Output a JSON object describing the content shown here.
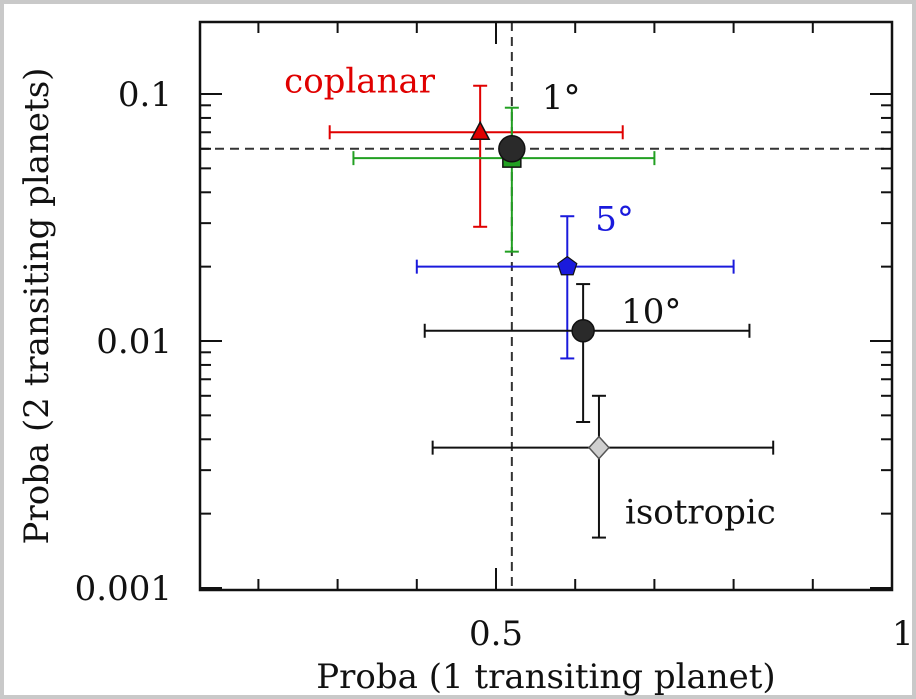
{
  "chart_data": {
    "type": "scatter",
    "xlabel": "Proba (1 transiting planet)",
    "ylabel": "Proba (2 transiting planets)",
    "x_scale": "linear",
    "y_scale": "log",
    "xlim": [
      0.0,
      1.0
    ],
    "ylim": [
      0.001,
      0.2
    ],
    "xticks": [
      0.5,
      1
    ],
    "xtick_labels": [
      "0.5",
      "1"
    ],
    "yticks": [
      0.001,
      0.01,
      0.1
    ],
    "ytick_labels": [
      "0.001",
      "0.01",
      "0.1"
    ],
    "reference_lines": {
      "x": 0.52,
      "y": 0.06,
      "style": "dashed"
    },
    "series": [
      {
        "name": "coplanar",
        "color": "#e00000",
        "marker": "triangle",
        "x": 0.48,
        "y": 0.07,
        "xerr": [
          0.29,
          0.66
        ],
        "yerr": [
          0.029,
          0.108
        ]
      },
      {
        "name": "",
        "color": "#22a022",
        "marker": "square",
        "x": 0.52,
        "y": 0.055,
        "xerr": [
          0.32,
          0.7
        ],
        "yerr": [
          0.023,
          0.088
        ]
      },
      {
        "name": "1°",
        "color": "#111111",
        "marker": "circle",
        "x": 0.52,
        "y": 0.06,
        "xerr": null,
        "yerr": null
      },
      {
        "name": "5°",
        "color": "#1a1adc",
        "marker": "pentagon",
        "x": 0.59,
        "y": 0.02,
        "xerr": [
          0.4,
          0.8
        ],
        "yerr": [
          0.0085,
          0.032
        ]
      },
      {
        "name": "10°",
        "color": "#111111",
        "marker": "circle",
        "x": 0.61,
        "y": 0.011,
        "xerr": [
          0.41,
          0.82
        ],
        "yerr": [
          0.0047,
          0.017
        ]
      },
      {
        "name": "isotropic",
        "color": "#111111",
        "marker": "diamond",
        "x": 0.63,
        "y": 0.0037,
        "xerr": [
          0.42,
          0.85
        ],
        "yerr": [
          0.0016,
          0.006
        ]
      }
    ],
    "annotations": [
      {
        "text": "coplanar",
        "color": "#e00000"
      },
      {
        "text": "1°",
        "color": "#111111"
      },
      {
        "text": "5°",
        "color": "#1a1adc"
      },
      {
        "text": "10°",
        "color": "#111111"
      },
      {
        "text": "isotropic",
        "color": "#111111"
      }
    ]
  }
}
